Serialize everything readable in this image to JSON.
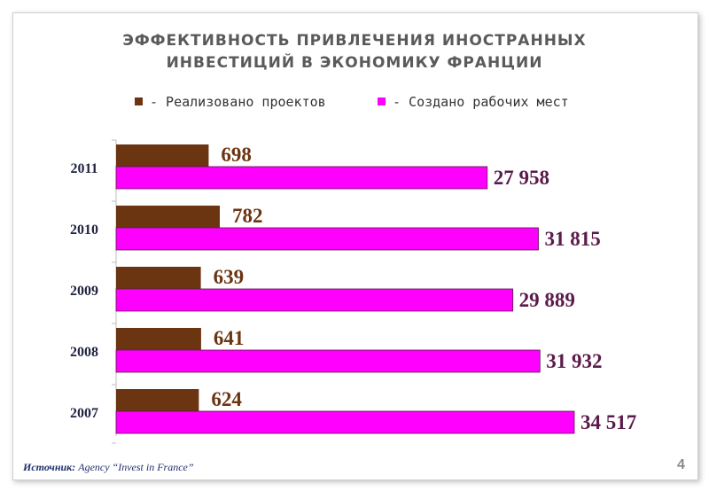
{
  "chart_data": {
    "type": "bar",
    "orientation": "horizontal",
    "title_line1": "ЭФФЕКТИВНОСТЬ ПРИВЛЕЧЕНИЯ ИНОСТРАННЫХ",
    "title_line2": "ИНВЕСТИЦИЙ В ЭКОНОМИКУ ФРАНЦИИ",
    "categories": [
      "2011",
      "2010",
      "2009",
      "2008",
      "2007"
    ],
    "series": [
      {
        "name": "- Реализовано проектов",
        "color": "#6b3512",
        "values": [
          698,
          782,
          639,
          641,
          624
        ],
        "labels": [
          "698",
          "782",
          "639",
          "641",
          "624"
        ]
      },
      {
        "name": "- Создано рабочих мест",
        "color": "#ff00ff",
        "values": [
          27958,
          31815,
          29889,
          31932,
          34517
        ],
        "labels": [
          "27 958",
          "31 815",
          "29 889",
          "31 932",
          "34 517"
        ]
      }
    ],
    "legend_position": "top",
    "grid": false
  },
  "footer": {
    "source_label": "Источник:",
    "source_text": "Agency “Invest in France”",
    "page_number": "4"
  }
}
